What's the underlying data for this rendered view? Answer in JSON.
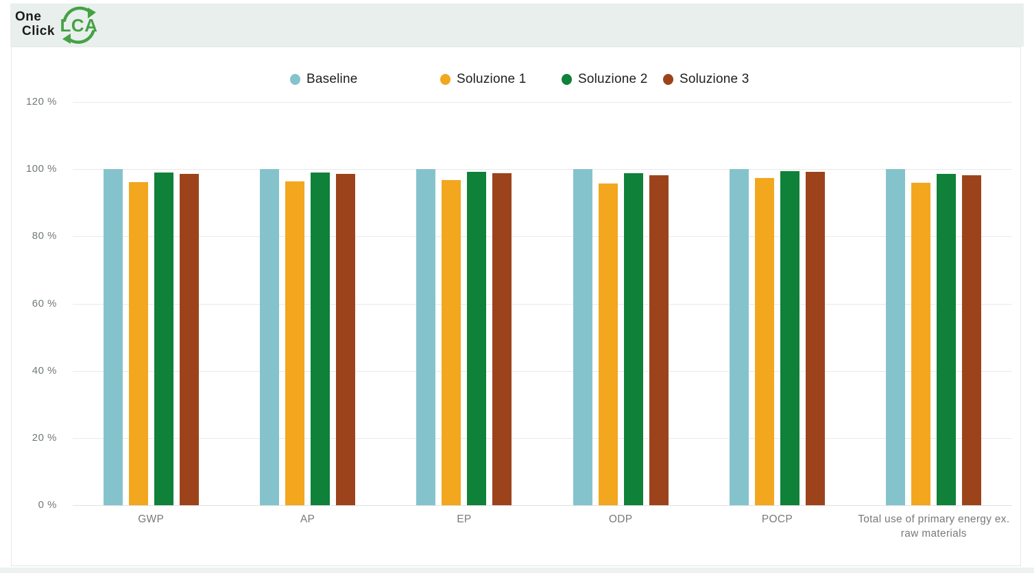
{
  "brand": {
    "line1": "One",
    "line2": "Click",
    "acronym": "LCA",
    "logo_green": "#44a244",
    "logo_text_color": "#1b1b1b"
  },
  "header": {
    "band_color": "#e9efec"
  },
  "chart_data": {
    "type": "bar",
    "title": "",
    "xlabel": "",
    "ylabel": "",
    "ylim": [
      0,
      120
    ],
    "y_ticks": [
      0,
      20,
      40,
      60,
      80,
      100,
      120
    ],
    "y_tick_labels": [
      "0 %",
      "20 %",
      "40 %",
      "60 %",
      "80 %",
      "100 %",
      "120 %"
    ],
    "grid": true,
    "legend_position": "top",
    "categories": [
      "GWP",
      "AP",
      "EP",
      "ODP",
      "POCP",
      "Total use of primary energy ex. raw materials"
    ],
    "series": [
      {
        "name": "Baseline",
        "color": "#85c3cc",
        "values": [
          100,
          100,
          100,
          100,
          100,
          100
        ]
      },
      {
        "name": "Soluzione 1",
        "color": "#f2a71e",
        "values": [
          96.2,
          96.3,
          96.7,
          95.8,
          97.3,
          95.9
        ]
      },
      {
        "name": "Soluzione 2",
        "color": "#0f8138",
        "values": [
          99.0,
          99.0,
          99.2,
          98.8,
          99.5,
          98.7
        ]
      },
      {
        "name": "Soluzione 3",
        "color": "#9c431b",
        "values": [
          98.6,
          98.7,
          98.9,
          98.3,
          99.3,
          98.2
        ]
      }
    ]
  }
}
